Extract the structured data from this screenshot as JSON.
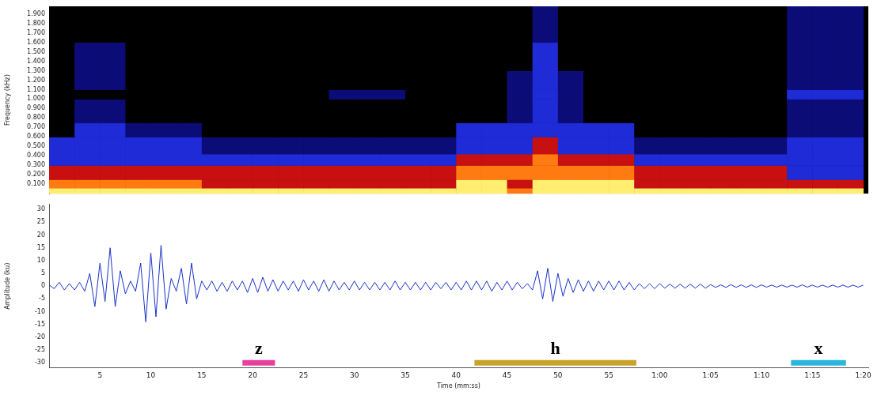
{
  "chart_data": [
    {
      "type": "heatmap",
      "y_label": "Frequency (kHz)",
      "x_bins": [
        0,
        2.5,
        5,
        7.5,
        10,
        12.5,
        15,
        17.5,
        20,
        22.5,
        25,
        27.5,
        30,
        32.5,
        35,
        37.5,
        40,
        42.5,
        45,
        47.5,
        50,
        52.5,
        55,
        57.5,
        60,
        62.5,
        65,
        67.5,
        70,
        72.5,
        75,
        77.5,
        80
      ],
      "y_bins": [
        0,
        0.06,
        0.15,
        0.3,
        0.42,
        0.6,
        0.75,
        1.0,
        1.1,
        1.3,
        1.6,
        1.98
      ],
      "cells": [
        [
          5,
          5,
          5,
          5,
          5,
          5,
          5,
          5,
          5,
          5,
          5,
          5,
          5,
          5,
          5,
          5,
          5,
          5,
          4,
          5,
          5,
          5,
          5,
          5,
          5,
          5,
          5,
          5,
          5,
          5,
          5,
          5
        ],
        [
          4,
          4,
          4,
          4,
          4,
          4,
          3,
          3,
          3,
          3,
          3,
          3,
          3,
          3,
          3,
          3,
          5,
          5,
          3,
          5,
          5,
          5,
          5,
          3,
          3,
          3,
          3,
          3,
          3,
          3,
          3,
          3
        ],
        [
          3,
          3,
          3,
          3,
          3,
          3,
          3,
          3,
          3,
          3,
          3,
          3,
          3,
          3,
          3,
          3,
          4,
          4,
          4,
          4,
          4,
          4,
          4,
          3,
          3,
          3,
          3,
          3,
          3,
          2,
          2,
          2
        ],
        [
          2,
          2,
          2,
          2,
          2,
          2,
          2,
          2,
          2,
          2,
          2,
          2,
          2,
          2,
          2,
          2,
          3,
          3,
          3,
          4,
          3,
          3,
          3,
          2,
          2,
          2,
          2,
          2,
          2,
          2,
          2,
          2
        ],
        [
          2,
          2,
          2,
          2,
          2,
          2,
          1,
          1,
          1,
          1,
          1,
          1,
          1,
          1,
          1,
          1,
          2,
          2,
          2,
          3,
          2,
          2,
          2,
          1,
          1,
          1,
          1,
          1,
          1,
          2,
          2,
          2
        ],
        [
          0,
          2,
          2,
          1,
          1,
          1,
          0,
          0,
          0,
          0,
          0,
          0,
          0,
          0,
          0,
          0,
          2,
          2,
          2,
          2,
          2,
          2,
          2,
          0,
          0,
          0,
          0,
          0,
          0,
          1,
          1,
          1
        ],
        [
          0,
          1,
          1,
          0,
          0,
          0,
          0,
          0,
          0,
          0,
          0,
          0,
          0,
          0,
          0,
          0,
          0,
          0,
          1,
          2,
          1,
          0,
          0,
          0,
          0,
          0,
          0,
          0,
          0,
          1,
          1,
          1
        ],
        [
          0,
          0,
          0,
          0,
          0,
          0,
          0,
          0,
          0,
          0,
          0,
          1,
          1,
          1,
          0,
          0,
          0,
          0,
          1,
          2,
          1,
          0,
          0,
          0,
          0,
          0,
          0,
          0,
          0,
          2,
          2,
          2
        ],
        [
          0,
          1,
          1,
          0,
          0,
          0,
          0,
          0,
          0,
          0,
          0,
          0,
          0,
          0,
          0,
          0,
          0,
          0,
          1,
          2,
          1,
          0,
          0,
          0,
          0,
          0,
          0,
          0,
          0,
          1,
          1,
          1
        ],
        [
          0,
          1,
          1,
          0,
          0,
          0,
          0,
          0,
          0,
          0,
          0,
          0,
          0,
          0,
          0,
          0,
          0,
          0,
          0,
          2,
          0,
          0,
          0,
          0,
          0,
          0,
          0,
          0,
          0,
          1,
          1,
          1
        ],
        [
          0,
          0,
          0,
          0,
          0,
          0,
          0,
          0,
          0,
          0,
          0,
          0,
          0,
          0,
          0,
          0,
          0,
          0,
          0,
          1,
          0,
          0,
          0,
          0,
          0,
          0,
          0,
          0,
          0,
          1,
          1,
          1
        ]
      ],
      "xlim": [
        0,
        80.5
      ],
      "ylim": [
        0,
        1.98
      ],
      "yticks": [
        {
          "value": 0.1,
          "label": "0.100"
        },
        {
          "value": 0.2,
          "label": "0.200"
        },
        {
          "value": 0.3,
          "label": "0.300"
        },
        {
          "value": 0.4,
          "label": "0.400"
        },
        {
          "value": 0.5,
          "label": "0.500"
        },
        {
          "value": 0.6,
          "label": "0.600"
        },
        {
          "value": 0.7,
          "label": "0.700"
        },
        {
          "value": 0.8,
          "label": "0.800"
        },
        {
          "value": 0.9,
          "label": "0.900"
        },
        {
          "value": 1.0,
          "label": "1.000"
        },
        {
          "value": 1.1,
          "label": "1.100"
        },
        {
          "value": 1.2,
          "label": "1.200"
        },
        {
          "value": 1.3,
          "label": "1.300"
        },
        {
          "value": 1.4,
          "label": "1.400"
        },
        {
          "value": 1.5,
          "label": "1.500"
        },
        {
          "value": 1.6,
          "label": "1.600"
        },
        {
          "value": 1.7,
          "label": "1.700"
        },
        {
          "value": 1.8,
          "label": "1.800"
        },
        {
          "value": 1.9,
          "label": "1.900"
        }
      ],
      "tick_labels": "y",
      "grid": false
    },
    {
      "type": "line",
      "x_label": "Time (mm:ss)",
      "y_label": "Amplitude (ku)",
      "color": "#1a32c8",
      "x": [
        0,
        0.5,
        1,
        1.5,
        2,
        2.5,
        3,
        3.5,
        4,
        4.5,
        5,
        5.5,
        6,
        6.5,
        7,
        7.5,
        8,
        8.5,
        9,
        9.5,
        10,
        10.5,
        11,
        11.5,
        12,
        12.5,
        13,
        13.5,
        14,
        14.5,
        15,
        15.5,
        16,
        16.5,
        17,
        17.5,
        18,
        18.5,
        19,
        19.5,
        20,
        20.5,
        21,
        21.5,
        22,
        22.5,
        23,
        23.5,
        24,
        24.5,
        25,
        25.5,
        26,
        26.5,
        27,
        27.5,
        28,
        28.5,
        29,
        29.5,
        30,
        30.5,
        31,
        31.5,
        32,
        32.5,
        33,
        33.5,
        34,
        34.5,
        35,
        35.5,
        36,
        36.5,
        37,
        37.5,
        38,
        38.5,
        39,
        39.5,
        40,
        40.5,
        41,
        41.5,
        42,
        42.5,
        43,
        43.5,
        44,
        44.5,
        45,
        45.5,
        46,
        46.5,
        47,
        47.5,
        48,
        48.5,
        49,
        49.5,
        50,
        50.5,
        51,
        51.5,
        52,
        52.5,
        53,
        53.5,
        54,
        54.5,
        55,
        55.5,
        56,
        56.5,
        57,
        57.5,
        58,
        58.5,
        59,
        59.5,
        60,
        60.5,
        61,
        61.5,
        62,
        62.5,
        63,
        63.5,
        64,
        64.5,
        65,
        65.5,
        66,
        66.5,
        67,
        67.5,
        68,
        68.5,
        69,
        69.5,
        70,
        70.5,
        71,
        71.5,
        72,
        72.5,
        73,
        73.5,
        74,
        74.5,
        75,
        75.5,
        76,
        76.5,
        77,
        77.5,
        78,
        78.5,
        79,
        79.5,
        80
      ],
      "values": [
        0.5,
        -1,
        1.5,
        -1.5,
        1,
        -1.5,
        1.5,
        -2,
        5,
        -8,
        9,
        -6,
        15,
        -8,
        6,
        -3,
        2,
        -2,
        9,
        -14,
        13,
        -12,
        16,
        -9,
        3,
        -2,
        7,
        -7,
        9,
        -5,
        2,
        -1.5,
        2,
        -2,
        1.5,
        -2,
        2,
        -1.5,
        2,
        -2.5,
        3,
        -2.5,
        3.5,
        -2,
        2.5,
        -2,
        2,
        -1.5,
        2,
        -2,
        2.5,
        -1.5,
        2,
        -2,
        2.5,
        -2,
        2,
        -1.5,
        1.5,
        -1.5,
        2,
        -1.5,
        1.5,
        -1.5,
        1.5,
        -1.5,
        1.5,
        -1.5,
        2,
        -1.5,
        1.5,
        -1.5,
        1.5,
        -1.5,
        1.5,
        -1.5,
        1.5,
        -1,
        1.5,
        -1.5,
        1.5,
        -1.5,
        2,
        -1.5,
        2,
        -1.5,
        2,
        -2,
        1.5,
        -1.5,
        2,
        -1.5,
        1.5,
        -1,
        1,
        -1.5,
        6,
        -5,
        7,
        -6,
        5,
        -4,
        3,
        -2.5,
        2.5,
        -2,
        2,
        -2,
        2,
        -1.5,
        2,
        -1.5,
        2,
        -1.5,
        1.5,
        -1.5,
        1,
        -1,
        1,
        -1,
        1,
        -0.8,
        0.8,
        -0.8,
        0.8,
        -0.8,
        0.8,
        -0.8,
        0.8,
        -0.8,
        0.6,
        -0.5,
        0.5,
        -0.5,
        0.6,
        -0.5,
        0.5,
        -0.5,
        0.5,
        -0.5,
        0.5,
        -0.4,
        0.4,
        -0.4,
        0.4,
        -0.4,
        0.4,
        -0.4,
        0.5,
        -0.4,
        0.4,
        -0.4,
        0.4,
        -0.4,
        0.4,
        -0.4,
        0.4,
        -0.4,
        0.4,
        -0.4,
        0.4
      ],
      "xlim": [
        0,
        80.5
      ],
      "ylim": [
        -32,
        32
      ],
      "xticks": [
        5,
        10,
        15,
        20,
        25,
        30,
        35,
        40,
        45,
        50,
        55,
        {
          "value": 60,
          "label": "1:00"
        },
        {
          "value": 65,
          "label": "1:05"
        },
        {
          "value": 70,
          "label": "1:10"
        },
        {
          "value": 75,
          "label": "1:15"
        },
        {
          "value": 80,
          "label": "1:20"
        }
      ],
      "yticks": [
        -30,
        -25,
        -20,
        -15,
        -10,
        -5,
        0,
        5,
        10,
        15,
        20,
        25,
        30
      ],
      "grid": false,
      "annotations": [
        {
          "label": "z",
          "start": 19,
          "end": 22.2,
          "color": "#e8409f"
        },
        {
          "label": "h",
          "start": 41.8,
          "end": 57.7,
          "color": "#c9a227"
        },
        {
          "label": "x",
          "start": 72.9,
          "end": 78.3,
          "color": "#29b6e0"
        }
      ]
    }
  ]
}
